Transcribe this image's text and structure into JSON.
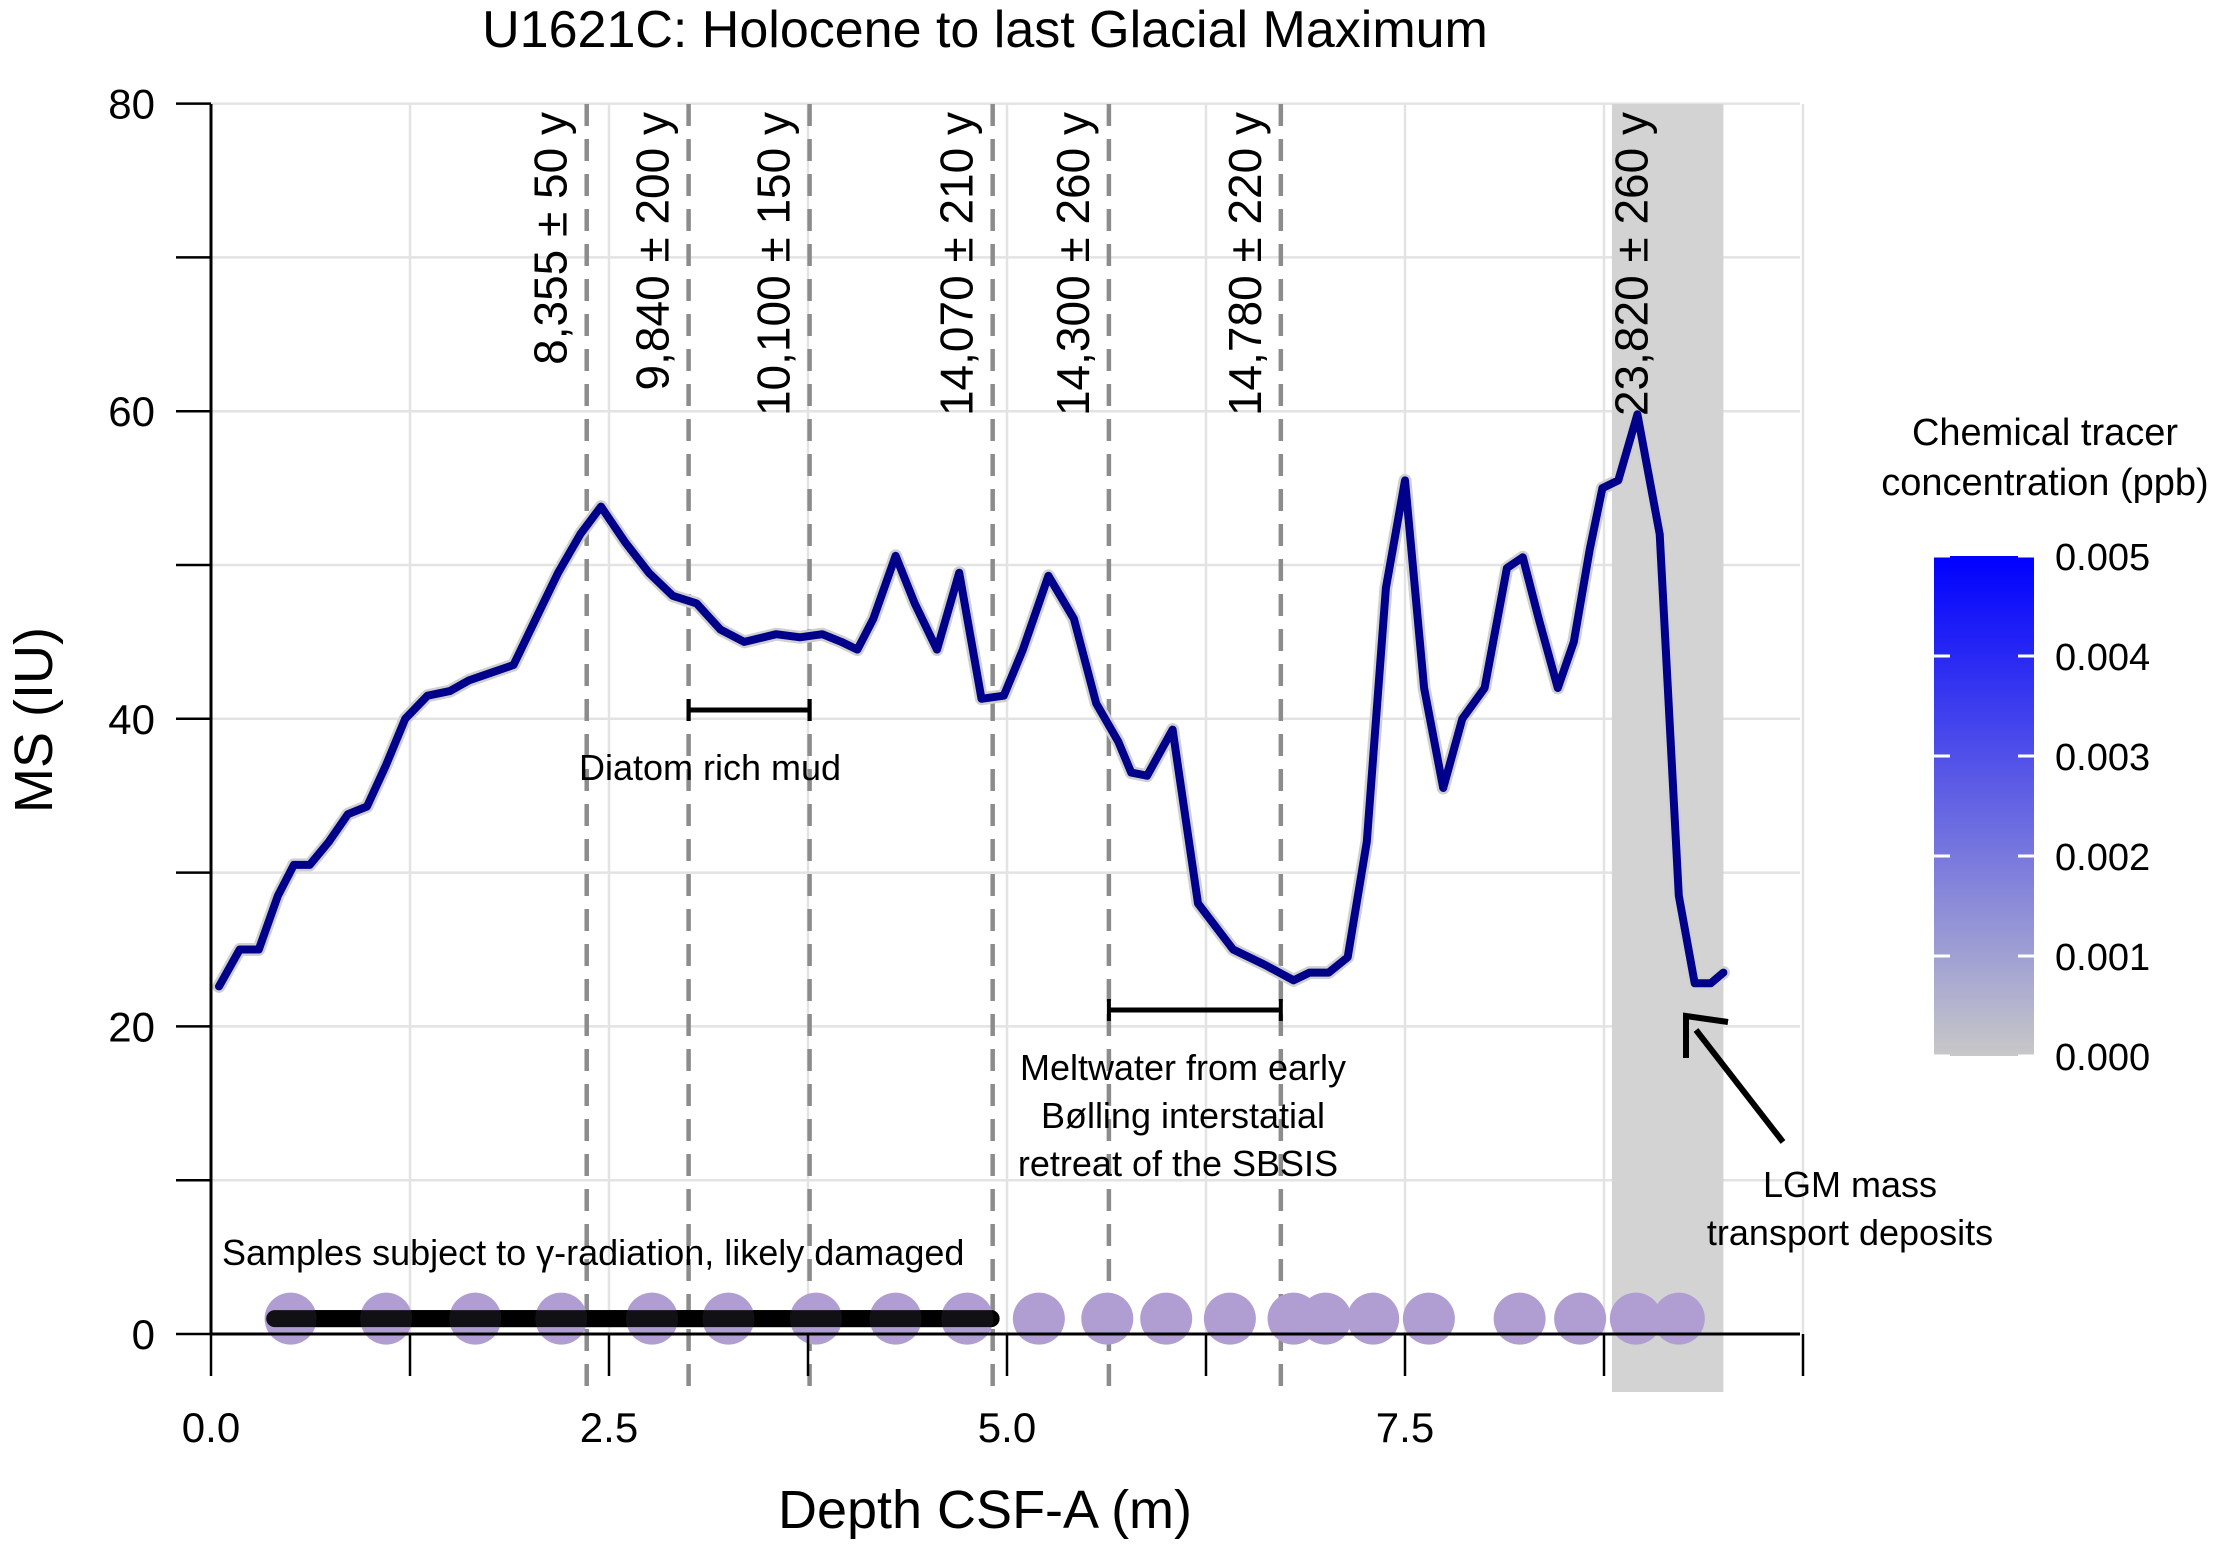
{
  "chart_data": {
    "type": "line",
    "title": "U1621C: Holocene to last Glacial Maximum",
    "xlabel": "Depth CSF-A (m)",
    "ylabel": "MS (IU)",
    "xlim": [
      0,
      10
    ],
    "ylim": [
      0,
      80
    ],
    "x_ticks": [
      0.0,
      2.5,
      5.0,
      7.5
    ],
    "x_tick_labels": [
      "0.0",
      "2.5",
      "5.0",
      "7.5"
    ],
    "y_ticks": [
      0,
      20,
      40,
      60,
      80
    ],
    "y_tick_labels": [
      "0",
      "20",
      "40",
      "60",
      "80"
    ],
    "grid": true,
    "series": [
      {
        "color": "#00008b",
        "x": [
          0.05,
          0.18,
          0.3,
          0.42,
          0.52,
          0.62,
          0.74,
          0.86,
          0.98,
          1.1,
          1.22,
          1.36,
          1.5,
          1.62,
          1.76,
          1.9,
          2.04,
          2.18,
          2.32,
          2.45,
          2.6,
          2.75,
          2.9,
          3.05,
          3.2,
          3.35,
          3.55,
          3.7,
          3.84,
          3.96,
          4.06,
          4.16,
          4.3,
          4.42,
          4.56,
          4.7,
          4.84,
          4.98,
          5.1,
          5.26,
          5.42,
          5.56,
          5.7,
          5.78,
          5.88,
          6.04,
          6.2,
          6.42,
          6.62,
          6.8,
          6.9,
          7.02,
          7.14,
          7.26,
          7.38,
          7.5,
          7.62,
          7.74,
          7.86,
          8.0,
          8.14,
          8.24,
          8.34,
          8.46,
          8.56,
          8.66,
          8.74,
          8.84,
          8.96,
          9.1,
          9.22,
          9.32,
          9.42,
          9.5
        ],
        "y": [
          22.6,
          25.0,
          25.0,
          28.5,
          30.5,
          30.5,
          32.0,
          33.8,
          34.3,
          37.0,
          40.0,
          41.5,
          41.8,
          42.5,
          43.0,
          43.5,
          46.5,
          49.5,
          52.0,
          53.8,
          51.5,
          49.5,
          48.0,
          47.5,
          45.8,
          45.0,
          45.5,
          45.3,
          45.5,
          45.0,
          44.5,
          46.5,
          50.6,
          47.5,
          44.5,
          49.5,
          41.3,
          41.5,
          44.5,
          49.3,
          46.5,
          41.0,
          38.5,
          36.5,
          36.3,
          39.3,
          28.0,
          25.0,
          24.0,
          23.0,
          23.5,
          23.5,
          24.5,
          32.0,
          48.5,
          55.5,
          42.0,
          35.5,
          40.0,
          42.0,
          49.8,
          50.5,
          46.5,
          42.0,
          45.0,
          51.0,
          55.0,
          55.5,
          59.8,
          52.0,
          28.5,
          22.8,
          22.8,
          23.5
        ]
      }
    ],
    "dated_depths": [
      {
        "depth": 2.36,
        "label": "8,355 ± 50 y"
      },
      {
        "depth": 3.0,
        "label": "9,840 ± 200 y"
      },
      {
        "depth": 3.76,
        "label": "10,100 ± 150 y"
      },
      {
        "depth": 4.91,
        "label": "14,070 ± 210 y"
      },
      {
        "depth": 5.64,
        "label": "14,300 ± 260 y"
      },
      {
        "depth": 6.72,
        "label": "14,780 ± 220 y"
      },
      {
        "depth": 9.15,
        "label": "23,820 ± 260 y"
      }
    ],
    "shaded_region": [
      8.8,
      9.5
    ],
    "sample_depths": [
      0.5,
      1.1,
      1.66,
      2.2,
      2.77,
      3.25,
      3.8,
      4.3,
      4.75,
      5.2,
      5.63,
      6.0,
      6.4,
      6.8,
      7.0,
      7.3,
      7.65,
      8.22,
      8.6,
      8.95,
      9.22
    ],
    "sample_color": "#b09ed2",
    "sample_concentration_ppb": 0.0,
    "damaged_samples_range": [
      0.4,
      4.9
    ],
    "legend": {
      "title": "Chemical tracer concentration (ppb)",
      "title_line1": "Chemical tracer",
      "title_line2": "concentration (ppb)",
      "ticks": [
        "0.005",
        "0.004",
        "0.003",
        "0.002",
        "0.001",
        "0.000"
      ],
      "color_low": "#c8c8c8",
      "color_high": "#0000ff",
      "placement": "right"
    },
    "annotations": {
      "diatom": "Diatom rich mud",
      "meltwater_line1": "Meltwater from early",
      "meltwater_line2": "Bølling interstatial",
      "meltwater_line3": "retreat of the SBSIS",
      "lgm_line1": "LGM mass",
      "lgm_line2": "transport deposits",
      "damaged": "Samples subject to γ-radiation, likely damaged"
    }
  }
}
